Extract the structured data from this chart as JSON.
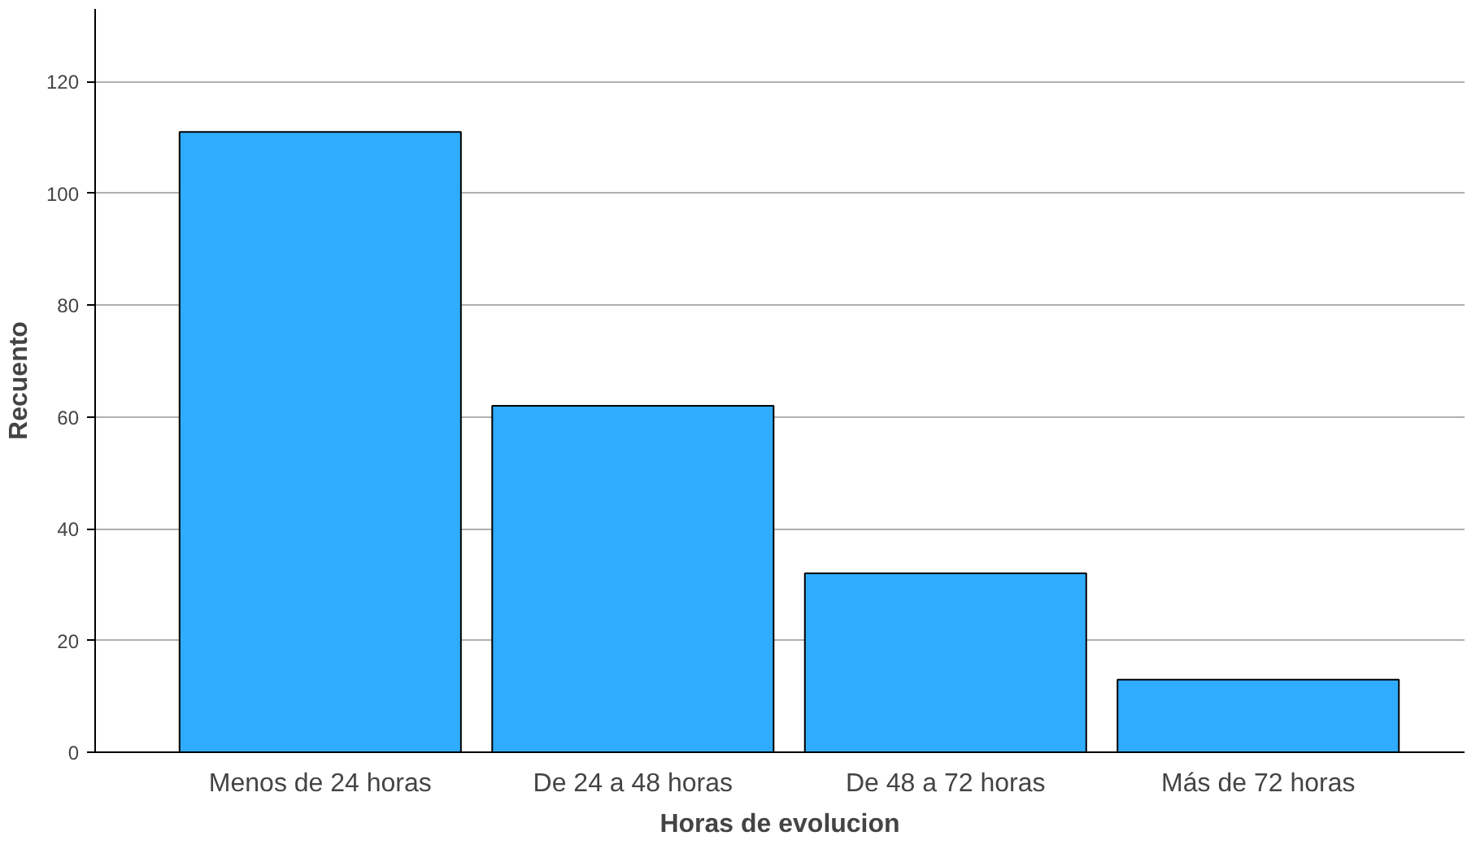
{
  "chart_data": {
    "type": "bar",
    "xlabel": "Horas de evolucion",
    "ylabel": "Recuento",
    "categories": [
      "Menos de 24 horas",
      "De 24 a 48 horas",
      "De 48 a 72 horas",
      "Más de 72 horas"
    ],
    "values": [
      111,
      62,
      32,
      13
    ],
    "color": "#30acff",
    "ylim": [
      0,
      133
    ],
    "yticks": [
      0,
      20,
      40,
      60,
      80,
      100,
      120
    ],
    "grid": "y"
  }
}
